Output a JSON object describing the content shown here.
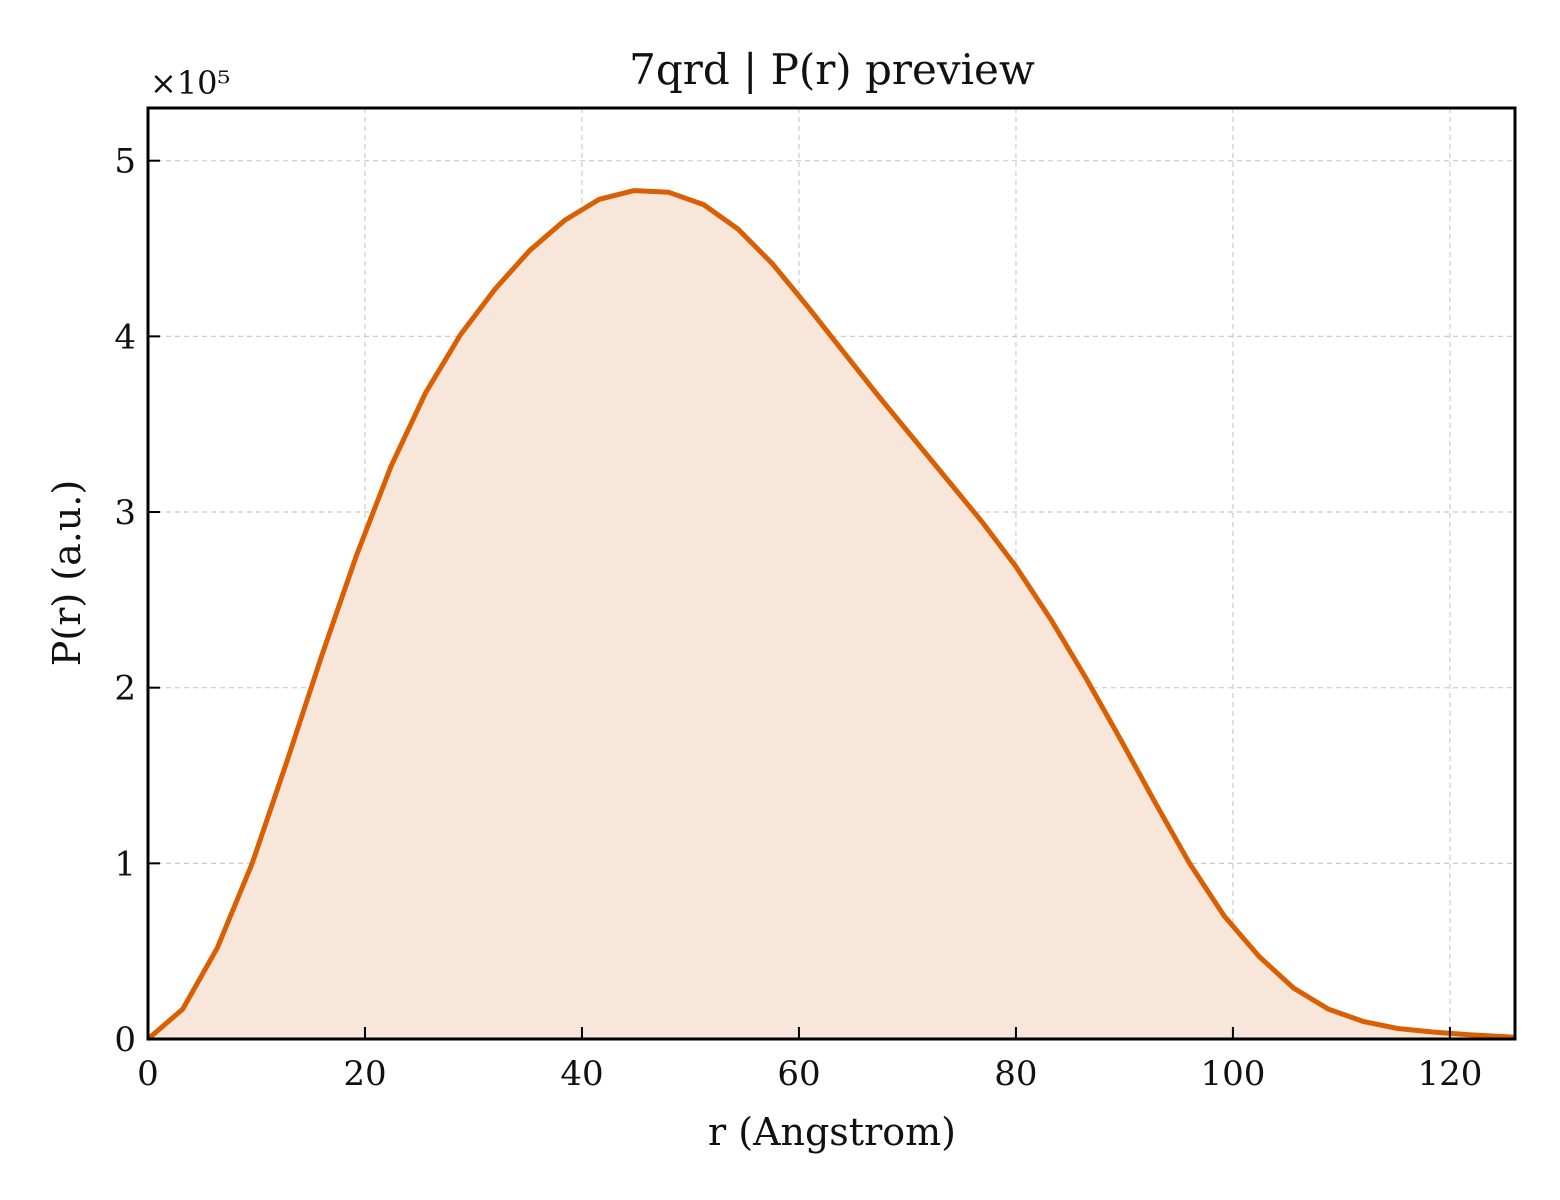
{
  "chart_data": {
    "type": "area",
    "title": "7qrd | P(r) preview",
    "xlabel": "r (Angstrom)",
    "ylabel": "P(r) (a.u.)",
    "y_scale_label": "×10⁵",
    "y_scale_factor": 100000,
    "xlim": [
      0,
      126
    ],
    "ylim": [
      0,
      5.3
    ],
    "x_ticks": [
      0,
      20,
      40,
      60,
      80,
      100,
      120
    ],
    "y_ticks": [
      0,
      1,
      2,
      3,
      4,
      5
    ],
    "grid": true,
    "colors": {
      "line": "#d95f02",
      "fill": "#f8e6da"
    },
    "series": [
      {
        "x": [
          0,
          3.2,
          6.4,
          9.6,
          12.8,
          16.0,
          19.2,
          22.4,
          25.6,
          28.8,
          32.0,
          35.2,
          38.4,
          41.6,
          44.8,
          48.0,
          51.2,
          54.4,
          57.6,
          60.8,
          64.0,
          67.2,
          70.4,
          73.6,
          76.8,
          80.0,
          83.2,
          86.4,
          89.6,
          92.8,
          96.0,
          99.2,
          102.4,
          105.6,
          108.8,
          112.0,
          115.2,
          118.4,
          121.6,
          126.0
        ],
        "values": [
          0,
          0.17,
          0.52,
          1.0,
          1.58,
          2.18,
          2.75,
          3.26,
          3.68,
          4.01,
          4.27,
          4.49,
          4.66,
          4.78,
          4.83,
          4.82,
          4.75,
          4.61,
          4.41,
          4.17,
          3.92,
          3.67,
          3.43,
          3.19,
          2.95,
          2.69,
          2.39,
          2.06,
          1.71,
          1.35,
          1.0,
          0.7,
          0.47,
          0.29,
          0.17,
          0.1,
          0.06,
          0.04,
          0.025,
          0.01
        ]
      }
    ]
  }
}
